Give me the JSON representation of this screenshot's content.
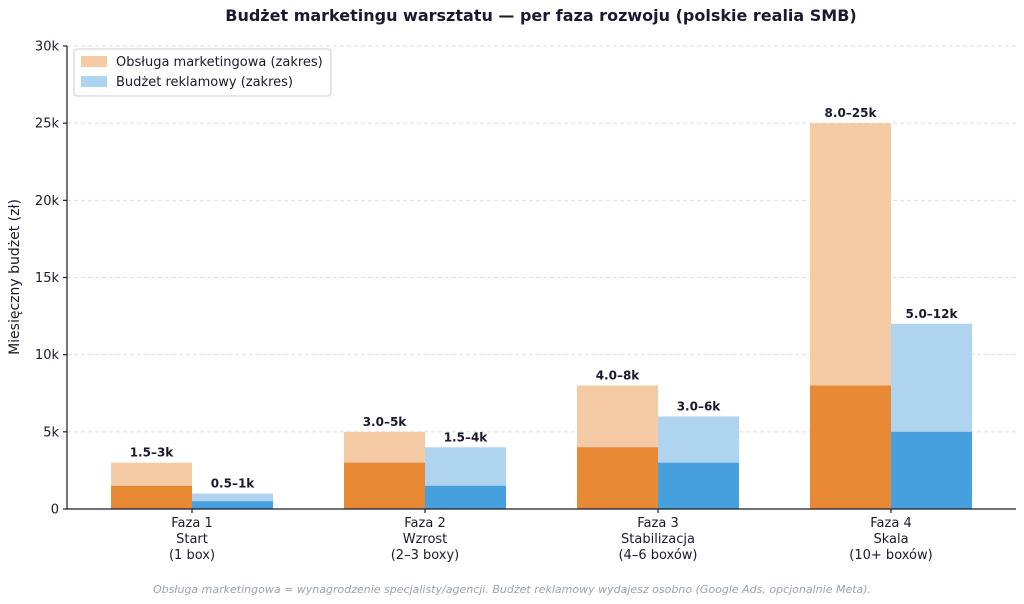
{
  "chart_data": {
    "type": "bar",
    "title": "Budżet marketingu warsztatu — per faza rozwoju (polskie realia SMB)",
    "ylabel": "Miesięczny budżet (zł)",
    "xlabel": "",
    "ylim": [
      0,
      30000
    ],
    "yticks": [
      0,
      5000,
      10000,
      15000,
      20000,
      25000,
      30000
    ],
    "ytick_labels": [
      "0",
      "5k",
      "10k",
      "15k",
      "20k",
      "25k",
      "30k"
    ],
    "grid": true,
    "legend_position": "top-left",
    "categories": [
      [
        "Faza 1",
        "Start",
        "(1 box)"
      ],
      [
        "Faza 2",
        "Wzrost",
        "(2–3 boxy)"
      ],
      [
        "Faza 3",
        "Stabilizacja",
        "(4–6 boxów)"
      ],
      [
        "Faza 4",
        "Skala",
        "(10+ boxów)"
      ]
    ],
    "series": [
      {
        "name": "Obsługa marketingowa (zakres)",
        "min": [
          1500,
          3000,
          4000,
          8000
        ],
        "max": [
          3000,
          5000,
          8000,
          25000
        ],
        "labels": [
          "1.5–3k",
          "3.0–5k",
          "4.0–8k",
          "8.0–25k"
        ],
        "color_min": "#e88a35",
        "color_range": "#f5cba6"
      },
      {
        "name": "Budżet reklamowy (zakres)",
        "min": [
          500,
          1500,
          3000,
          5000
        ],
        "max": [
          1000,
          4000,
          6000,
          12000
        ],
        "labels": [
          "0.5–1k",
          "1.5–4k",
          "3.0–6k",
          "5.0–12k"
        ],
        "color_min": "#47a0de",
        "color_range": "#aed4f0"
      }
    ],
    "footnote": "Obsługa marketingowa = wynagrodzenie specjalisty/agencji. Budżet reklamowy wydajesz osobno (Google Ads, opcjonalnie Meta)."
  }
}
